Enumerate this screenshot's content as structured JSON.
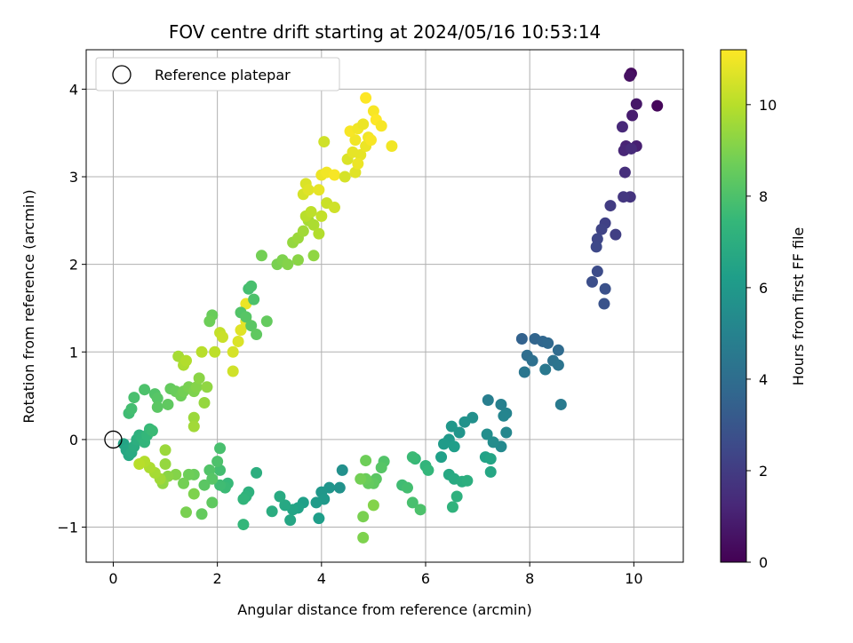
{
  "chart_data": {
    "type": "scatter",
    "title": "FOV centre drift starting at 2024/05/16 10:53:14",
    "xlabel": "Angular distance from reference (arcmin)",
    "ylabel": "Rotation from reference (arcmin)",
    "colorbar_label": "Hours from first FF file",
    "colormap": "viridis",
    "xlim": [
      -0.52,
      10.95
    ],
    "ylim": [
      -1.4,
      4.45
    ],
    "clim": [
      0,
      11.2
    ],
    "xticks": [
      0,
      2,
      4,
      6,
      8,
      10
    ],
    "yticks": [
      -1,
      0,
      1,
      2,
      3,
      4
    ],
    "cticks": [
      0,
      2,
      4,
      6,
      8,
      10
    ],
    "grid": true,
    "legend": {
      "position": "top-left",
      "label": "Reference platepar"
    },
    "reference_point": {
      "x": 0,
      "y": 0
    },
    "points": [
      [
        10.45,
        3.81,
        0.2
      ],
      [
        9.95,
        4.18,
        0.3
      ],
      [
        9.92,
        4.15,
        0.5
      ],
      [
        10.05,
        3.83,
        0.7
      ],
      [
        9.97,
        3.7,
        0.9
      ],
      [
        10.05,
        3.35,
        1.0
      ],
      [
        9.85,
        3.35,
        1.1
      ],
      [
        9.81,
        3.3,
        1.2
      ],
      [
        9.78,
        3.57,
        1.3
      ],
      [
        9.95,
        3.32,
        1.4
      ],
      [
        9.83,
        3.05,
        1.5
      ],
      [
        9.93,
        2.77,
        1.7
      ],
      [
        9.8,
        2.77,
        1.8
      ],
      [
        9.55,
        2.67,
        2.0
      ],
      [
        9.65,
        2.34,
        2.1
      ],
      [
        9.45,
        2.47,
        2.2
      ],
      [
        9.38,
        2.4,
        2.3
      ],
      [
        9.3,
        2.29,
        2.4
      ],
      [
        9.28,
        2.2,
        2.5
      ],
      [
        9.3,
        1.92,
        2.6
      ],
      [
        9.2,
        1.8,
        2.7
      ],
      [
        9.45,
        1.72,
        2.8
      ],
      [
        9.43,
        1.55,
        2.9
      ],
      [
        7.85,
        1.15,
        3.5
      ],
      [
        8.1,
        1.15,
        3.6
      ],
      [
        8.25,
        1.12,
        3.7
      ],
      [
        8.35,
        1.1,
        3.8
      ],
      [
        8.55,
        1.02,
        3.9
      ],
      [
        7.95,
        0.96,
        4.0
      ],
      [
        8.05,
        0.9,
        4.1
      ],
      [
        8.45,
        0.9,
        4.2
      ],
      [
        8.55,
        0.85,
        4.3
      ],
      [
        7.9,
        0.77,
        4.4
      ],
      [
        8.3,
        0.8,
        4.5
      ],
      [
        8.6,
        0.4,
        4.6
      ],
      [
        7.2,
        0.45,
        4.8
      ],
      [
        7.45,
        0.4,
        4.9
      ],
      [
        7.55,
        0.3,
        5.0
      ],
      [
        7.5,
        0.27,
        5.1
      ],
      [
        7.55,
        0.08,
        5.2
      ],
      [
        7.45,
        -0.08,
        5.3
      ],
      [
        7.3,
        -0.03,
        5.4
      ],
      [
        7.18,
        0.06,
        5.5
      ],
      [
        6.9,
        0.25,
        5.6
      ],
      [
        6.75,
        0.2,
        5.7
      ],
      [
        6.65,
        0.08,
        5.8
      ],
      [
        6.5,
        0.15,
        5.9
      ],
      [
        6.45,
        0.0,
        6.0
      ],
      [
        6.35,
        -0.05,
        6.1
      ],
      [
        6.55,
        -0.08,
        6.2
      ],
      [
        6.3,
        -0.2,
        6.3
      ],
      [
        7.15,
        -0.2,
        6.4
      ],
      [
        7.25,
        -0.22,
        6.5
      ],
      [
        7.25,
        -0.37,
        6.6
      ],
      [
        6.45,
        -0.4,
        6.7
      ],
      [
        6.55,
        -0.45,
        6.8
      ],
      [
        6.7,
        -0.48,
        6.9
      ],
      [
        6.8,
        -0.47,
        7.0
      ],
      [
        6.6,
        -0.65,
        7.1
      ],
      [
        6.52,
        -0.77,
        7.2
      ],
      [
        6.0,
        -0.3,
        7.3
      ],
      [
        6.05,
        -0.35,
        7.4
      ],
      [
        5.8,
        -0.22,
        7.5
      ],
      [
        5.75,
        -0.2,
        7.6
      ],
      [
        5.55,
        -0.52,
        7.7
      ],
      [
        5.65,
        -0.55,
        7.8
      ],
      [
        5.75,
        -0.72,
        7.9
      ],
      [
        5.9,
        -0.8,
        8.0
      ],
      [
        5.2,
        -0.25,
        8.1
      ],
      [
        5.15,
        -0.32,
        8.2
      ],
      [
        5.05,
        -0.45,
        8.3
      ],
      [
        5.0,
        -0.5,
        8.4
      ],
      [
        4.9,
        -0.5,
        8.5
      ],
      [
        4.85,
        -0.45,
        8.6
      ],
      [
        4.85,
        -0.24,
        8.7
      ],
      [
        4.75,
        -0.45,
        8.8
      ],
      [
        4.8,
        -0.88,
        8.9
      ],
      [
        4.8,
        -1.12,
        9.0
      ],
      [
        5.0,
        -0.75,
        9.1
      ],
      [
        4.4,
        -0.35,
        5.6
      ],
      [
        4.35,
        -0.55,
        5.7
      ],
      [
        4.15,
        -0.55,
        5.8
      ],
      [
        4.0,
        -0.6,
        5.9
      ],
      [
        4.05,
        -0.68,
        6.0
      ],
      [
        3.9,
        -0.72,
        6.1
      ],
      [
        3.95,
        -0.9,
        6.2
      ],
      [
        3.65,
        -0.72,
        6.3
      ],
      [
        3.55,
        -0.78,
        6.4
      ],
      [
        3.45,
        -0.8,
        6.5
      ],
      [
        3.4,
        -0.92,
        6.6
      ],
      [
        3.3,
        -0.75,
        6.7
      ],
      [
        3.2,
        -0.65,
        6.8
      ],
      [
        3.05,
        -0.82,
        6.9
      ],
      [
        2.75,
        -0.38,
        7.0
      ],
      [
        2.6,
        -0.6,
        7.1
      ],
      [
        2.55,
        -0.65,
        7.2
      ],
      [
        2.5,
        -0.68,
        7.3
      ],
      [
        2.5,
        -0.97,
        7.4
      ],
      [
        2.2,
        -0.5,
        7.5
      ],
      [
        2.15,
        -0.55,
        7.6
      ],
      [
        2.05,
        -0.52,
        7.7
      ],
      [
        2.05,
        -0.35,
        7.8
      ],
      [
        2.05,
        -0.1,
        7.9
      ],
      [
        2.0,
        -0.25,
        8.0
      ],
      [
        1.85,
        -0.35,
        8.1
      ],
      [
        1.9,
        -0.45,
        8.2
      ],
      [
        1.75,
        -0.52,
        8.3
      ],
      [
        1.9,
        -0.72,
        8.4
      ],
      [
        1.7,
        -0.85,
        8.5
      ],
      [
        1.55,
        -0.4,
        8.6
      ],
      [
        1.45,
        -0.4,
        8.7
      ],
      [
        1.35,
        -0.5,
        8.8
      ],
      [
        1.4,
        -0.83,
        8.9
      ],
      [
        1.55,
        -0.62,
        9.0
      ],
      [
        1.2,
        -0.4,
        9.1
      ],
      [
        1.05,
        -0.42,
        9.2
      ],
      [
        0.95,
        -0.5,
        9.3
      ],
      [
        1.0,
        -0.28,
        9.4
      ],
      [
        1.0,
        -0.12,
        9.5
      ],
      [
        0.9,
        -0.45,
        9.6
      ],
      [
        0.8,
        -0.38,
        9.7
      ],
      [
        0.7,
        -0.32,
        9.8
      ],
      [
        0.6,
        -0.25,
        9.9
      ],
      [
        0.5,
        -0.28,
        10.0
      ],
      [
        0.2,
        -0.05,
        6.5
      ],
      [
        0.25,
        -0.12,
        6.6
      ],
      [
        0.3,
        -0.18,
        6.7
      ],
      [
        0.35,
        -0.15,
        6.8
      ],
      [
        0.4,
        -0.08,
        6.9
      ],
      [
        0.45,
        0.0,
        7.0
      ],
      [
        0.5,
        0.05,
        7.1
      ],
      [
        0.55,
        0.02,
        7.2
      ],
      [
        0.6,
        -0.03,
        7.3
      ],
      [
        0.65,
        0.05,
        7.4
      ],
      [
        0.7,
        0.12,
        7.5
      ],
      [
        0.75,
        0.1,
        7.6
      ],
      [
        0.3,
        0.3,
        7.7
      ],
      [
        0.35,
        0.35,
        7.8
      ],
      [
        0.4,
        0.48,
        7.9
      ],
      [
        0.6,
        0.57,
        8.0
      ],
      [
        0.8,
        0.52,
        8.1
      ],
      [
        0.85,
        0.47,
        8.2
      ],
      [
        0.85,
        0.37,
        8.3
      ],
      [
        1.05,
        0.4,
        8.4
      ],
      [
        1.1,
        0.58,
        8.5
      ],
      [
        1.2,
        0.55,
        8.6
      ],
      [
        1.3,
        0.5,
        8.7
      ],
      [
        1.35,
        0.55,
        8.8
      ],
      [
        1.45,
        0.6,
        8.9
      ],
      [
        1.55,
        0.55,
        9.0
      ],
      [
        1.6,
        0.6,
        9.1
      ],
      [
        1.65,
        0.7,
        9.2
      ],
      [
        1.8,
        0.6,
        9.3
      ],
      [
        1.75,
        0.42,
        9.4
      ],
      [
        1.55,
        0.25,
        9.5
      ],
      [
        1.55,
        0.15,
        9.6
      ],
      [
        1.25,
        0.95,
        9.7
      ],
      [
        1.35,
        0.85,
        9.8
      ],
      [
        1.4,
        0.9,
        9.9
      ],
      [
        1.7,
        1.0,
        10.0
      ],
      [
        1.95,
        1.0,
        10.1
      ],
      [
        2.05,
        1.22,
        10.2
      ],
      [
        2.1,
        1.17,
        10.3
      ],
      [
        2.3,
        0.78,
        10.4
      ],
      [
        2.3,
        1.0,
        10.5
      ],
      [
        2.4,
        1.12,
        10.6
      ],
      [
        2.45,
        1.25,
        10.7
      ],
      [
        2.55,
        1.35,
        10.8
      ],
      [
        2.55,
        1.55,
        10.9
      ],
      [
        2.6,
        1.72,
        7.8
      ],
      [
        2.65,
        1.75,
        7.9
      ],
      [
        2.7,
        1.6,
        8.0
      ],
      [
        2.45,
        1.45,
        8.1
      ],
      [
        2.55,
        1.4,
        8.2
      ],
      [
        2.65,
        1.3,
        8.3
      ],
      [
        2.75,
        1.2,
        8.4
      ],
      [
        2.95,
        1.35,
        8.5
      ],
      [
        1.9,
        1.42,
        8.6
      ],
      [
        1.85,
        1.35,
        8.7
      ],
      [
        2.85,
        2.1,
        8.8
      ],
      [
        3.15,
        2.0,
        8.9
      ],
      [
        3.25,
        2.05,
        9.0
      ],
      [
        3.35,
        2.0,
        9.1
      ],
      [
        3.55,
        2.05,
        9.2
      ],
      [
        3.85,
        2.1,
        9.3
      ],
      [
        3.45,
        2.25,
        9.4
      ],
      [
        3.55,
        2.3,
        9.5
      ],
      [
        3.65,
        2.38,
        9.6
      ],
      [
        3.75,
        2.5,
        9.7
      ],
      [
        3.85,
        2.45,
        9.8
      ],
      [
        3.95,
        2.35,
        9.9
      ],
      [
        3.7,
        2.55,
        10.0
      ],
      [
        3.8,
        2.6,
        10.1
      ],
      [
        4.0,
        2.55,
        10.2
      ],
      [
        4.1,
        2.7,
        10.3
      ],
      [
        4.25,
        2.65,
        10.4
      ],
      [
        3.65,
        2.8,
        10.5
      ],
      [
        3.7,
        2.92,
        10.6
      ],
      [
        3.75,
        2.85,
        10.7
      ],
      [
        3.95,
        2.85,
        10.8
      ],
      [
        4.0,
        3.02,
        10.9
      ],
      [
        4.1,
        3.05,
        11.0
      ],
      [
        4.25,
        3.02,
        11.1
      ],
      [
        4.05,
        3.4,
        10.4
      ],
      [
        4.45,
        3.0,
        10.5
      ],
      [
        4.5,
        3.2,
        10.6
      ],
      [
        4.65,
        3.05,
        10.7
      ],
      [
        4.75,
        3.25,
        10.8
      ],
      [
        4.85,
        3.35,
        10.9
      ],
      [
        4.65,
        3.42,
        11.0
      ],
      [
        4.55,
        3.52,
        11.1
      ],
      [
        4.7,
        3.55,
        11.0
      ],
      [
        4.8,
        3.6,
        10.9
      ],
      [
        4.9,
        3.45,
        11.0
      ],
      [
        5.0,
        3.75,
        11.1
      ],
      [
        5.05,
        3.65,
        11.2
      ],
      [
        5.15,
        3.58,
        11.1
      ],
      [
        5.35,
        3.35,
        11.0
      ],
      [
        4.85,
        3.9,
        11.2
      ],
      [
        4.95,
        3.42,
        11.1
      ],
      [
        4.7,
        3.15,
        10.9
      ],
      [
        4.6,
        3.28,
        10.8
      ]
    ]
  }
}
